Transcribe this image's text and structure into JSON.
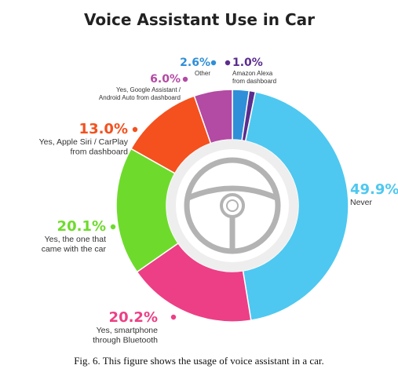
{
  "chart_data": {
    "type": "pie",
    "title": "Voice Assistant Use in Car",
    "slices": [
      {
        "label": "Never",
        "value": 49.9,
        "pct_text": "49.9%",
        "color": "#4ec8f0"
      },
      {
        "label": "Yes, smartphone through Bluetooth",
        "value": 20.2,
        "pct_text": "20.2%",
        "color": "#ec3f86"
      },
      {
        "label": "Yes, the one that came with the car",
        "value": 20.1,
        "pct_text": "20.1%",
        "color": "#6edb2c"
      },
      {
        "label": "Yes, Apple Siri / CarPlay from dashboard",
        "value": 13.0,
        "pct_text": "13.0%",
        "color": "#f4511e"
      },
      {
        "label": "Yes, Google Assistant / Android Auto from dashboard",
        "value": 6.0,
        "pct_text": "6.0%",
        "color": "#b34aa3"
      },
      {
        "label": "Other",
        "value": 2.6,
        "pct_text": "2.6%",
        "color": "#2f8fd8"
      },
      {
        "label": "Amazon Alexa from dashboard",
        "value": 1.0,
        "pct_text": "1.0%",
        "color": "#5b2d8e"
      }
    ]
  },
  "caption": "Fig. 6. This figure shows the usage of voice assistant in a car."
}
